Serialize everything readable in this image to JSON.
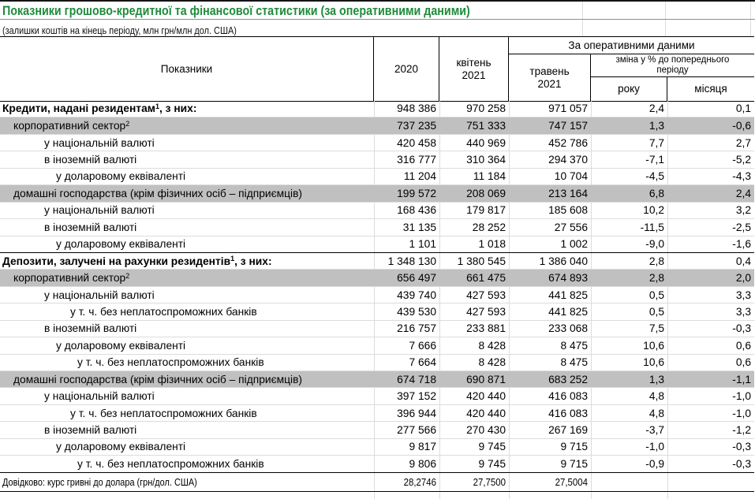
{
  "app": {
    "title": "Показники грошово-кредитної та фінансової статистики (за оперативними даними)",
    "subtitle": "(залишки коштів на кінець періоду, млн грн/млн дол. США)"
  },
  "colors": {
    "title_green": "#1f8b3b",
    "band_gray": "#c0c0c0",
    "grid_gray": "#dcdcdc",
    "border_black": "#000000"
  },
  "table": {
    "header": {
      "indicators": "Показники",
      "y2020": "2020",
      "april": "квітень 2021",
      "operational": "За оперативними даними",
      "may": "травень 2021",
      "change": "зміна у % до попереднього періоду",
      "year": "року",
      "month": "місяця"
    },
    "rows": [
      {
        "label": "Кредити, надані резидентам",
        "sup": "1",
        "suffix": ", з них:",
        "indent": 0,
        "bold": true,
        "values": [
          "948 386",
          "970 258",
          "971 057",
          "2,4",
          "0,1"
        ]
      },
      {
        "label": "корпоративний сектор",
        "sup": "2",
        "indent": 1,
        "band": true,
        "values": [
          "737 235",
          "751 333",
          "747 157",
          "1,3",
          "-0,6"
        ]
      },
      {
        "label": "у національній валюті",
        "indent": 2,
        "values": [
          "420 458",
          "440 969",
          "452 786",
          "7,7",
          "2,7"
        ]
      },
      {
        "label": "в іноземній валюті",
        "indent": 2,
        "values": [
          "316 777",
          "310 364",
          "294 370",
          "-7,1",
          "-5,2"
        ]
      },
      {
        "label": "у доларовому еквіваленті",
        "indent": 3,
        "values": [
          "11 204",
          "11 184",
          "10 704",
          "-4,5",
          "-4,3"
        ]
      },
      {
        "label": "домашні господарства (крім фізичних осіб – підприємців)",
        "indent": 1,
        "band": true,
        "values": [
          "199 572",
          "208 069",
          "213 164",
          "6,8",
          "2,4"
        ]
      },
      {
        "label": "у національній валюті",
        "indent": 2,
        "values": [
          "168 436",
          "179 817",
          "185 608",
          "10,2",
          "3,2"
        ]
      },
      {
        "label": "в іноземній валюті",
        "indent": 2,
        "values": [
          "31 135",
          "28 252",
          "27 556",
          "-11,5",
          "-2,5"
        ]
      },
      {
        "label": "у доларовому еквіваленті",
        "indent": 3,
        "values": [
          "1 101",
          "1 018",
          "1 002",
          "-9,0",
          "-1,6"
        ]
      },
      {
        "label": "Депозити, залучені на рахунки резидентів",
        "sup": "1",
        "suffix": ", з них:",
        "indent": 0,
        "bold": true,
        "blackTop": true,
        "values": [
          "1 348 130",
          "1 380 545",
          "1 386 040",
          "2,8",
          "0,4"
        ]
      },
      {
        "label": "корпоративний сектор",
        "sup": "2",
        "indent": 1,
        "band": true,
        "values": [
          "656 497",
          "661 475",
          "674 893",
          "2,8",
          "2,0"
        ]
      },
      {
        "label": "у національній валюті",
        "indent": 2,
        "values": [
          "439 740",
          "427 593",
          "441 825",
          "0,5",
          "3,3"
        ]
      },
      {
        "label": "у т. ч. без неплатоспроможних банків",
        "indent": 4,
        "values": [
          "439 530",
          "427 593",
          "441 825",
          "0,5",
          "3,3"
        ]
      },
      {
        "label": "в іноземній валюті",
        "indent": 2,
        "values": [
          "216 757",
          "233 881",
          "233 068",
          "7,5",
          "-0,3"
        ]
      },
      {
        "label": "у доларовому еквіваленті",
        "indent": 3,
        "values": [
          "7 666",
          "8 428",
          "8 475",
          "10,6",
          "0,6"
        ]
      },
      {
        "label": "у т. ч. без неплатоспроможних банків",
        "indent": 5,
        "values": [
          "7 664",
          "8 428",
          "8 475",
          "10,6",
          "0,6"
        ]
      },
      {
        "label": "домашні господарства (крім фізичних осіб – підприємців)",
        "indent": 1,
        "band": true,
        "values": [
          "674 718",
          "690 871",
          "683 252",
          "1,3",
          "-1,1"
        ]
      },
      {
        "label": "у національній валюті",
        "indent": 2,
        "values": [
          "397 152",
          "420 440",
          "416 083",
          "4,8",
          "-1,0"
        ]
      },
      {
        "label": "у т. ч. без неплатоспроможних банків",
        "indent": 4,
        "values": [
          "396 944",
          "420 440",
          "416 083",
          "4,8",
          "-1,0"
        ]
      },
      {
        "label": "в іноземній валюті",
        "indent": 2,
        "values": [
          "277 566",
          "270 430",
          "267 169",
          "-3,7",
          "-1,2"
        ]
      },
      {
        "label": "у доларовому еквіваленті",
        "indent": 3,
        "values": [
          "9 817",
          "9 745",
          "9 715",
          "-1,0",
          "-0,3"
        ]
      },
      {
        "label": "у т. ч. без неплатоспроможних банків",
        "indent": 5,
        "values": [
          "9 806",
          "9 745",
          "9 715",
          "-0,9",
          "-0,3"
        ]
      },
      {
        "label": "Довідково: курс гривні до долара (грн/дол. США)",
        "indent": 0,
        "condensed": true,
        "footer": true,
        "blackTop": true,
        "values": [
          "28,2746",
          "27,7500",
          "27,5004",
          "",
          ""
        ]
      }
    ]
  }
}
